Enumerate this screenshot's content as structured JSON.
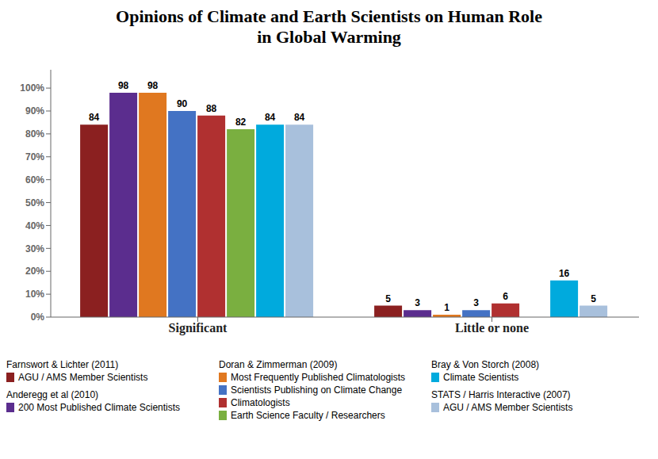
{
  "chart_data": {
    "type": "bar",
    "title": "Opinions of Climate and Earth Scientists on Human Role in Global Warming",
    "categories": [
      "Significant",
      "Little or none"
    ],
    "series": [
      {
        "name": "AGU / AMS Member Scientists",
        "study": "Farnswort & Lichter (2011)",
        "color": "#8B2020",
        "values": [
          84,
          5
        ]
      },
      {
        "name": "200 Most Published Climate Scientists",
        "study": "Anderegg et al (2010)",
        "color": "#5B2D8E",
        "values": [
          98,
          3
        ]
      },
      {
        "name": "Most Frequently Published Climatologists",
        "study": "Doran & Zimmerman (2009)",
        "color": "#E07820",
        "values": [
          98,
          1
        ]
      },
      {
        "name": "Scientists Publishing on Climate Change",
        "study": "Doran & Zimmerman (2009)",
        "color": "#4472C4",
        "values": [
          90,
          3
        ]
      },
      {
        "name": "Climatologists",
        "study": "Doran & Zimmerman (2009)",
        "color": "#B03030",
        "values": [
          88,
          6
        ]
      },
      {
        "name": "Earth Science Faculty / Researchers",
        "study": "Doran & Zimmerman (2009)",
        "color": "#7AAF40",
        "values": [
          82,
          null
        ]
      },
      {
        "name": "Climate Scientists",
        "study": "Bray & Von Storch (2008)",
        "color": "#00AADD",
        "values": [
          84,
          16
        ]
      },
      {
        "name": "AGU / AMS Member Scientists",
        "study": "STATS / Harris Interactive (2007)",
        "color": "#A8C0DC",
        "values": [
          84,
          5
        ]
      }
    ],
    "ylim": [
      0,
      108
    ],
    "yticks": [
      {
        "value": 0,
        "label": "0%"
      },
      {
        "value": 10,
        "label": "10%"
      },
      {
        "value": 20,
        "label": "20%"
      },
      {
        "value": 30,
        "label": "30%"
      },
      {
        "value": 40,
        "label": "40%"
      },
      {
        "value": 50,
        "label": "50%"
      },
      {
        "value": 60,
        "label": "60%"
      },
      {
        "value": 70,
        "label": "70%"
      },
      {
        "value": 80,
        "label": "80%"
      },
      {
        "value": 90,
        "label": "90%"
      },
      {
        "value": 100,
        "label": "100%"
      }
    ],
    "data_labels": true,
    "grid": false
  }
}
